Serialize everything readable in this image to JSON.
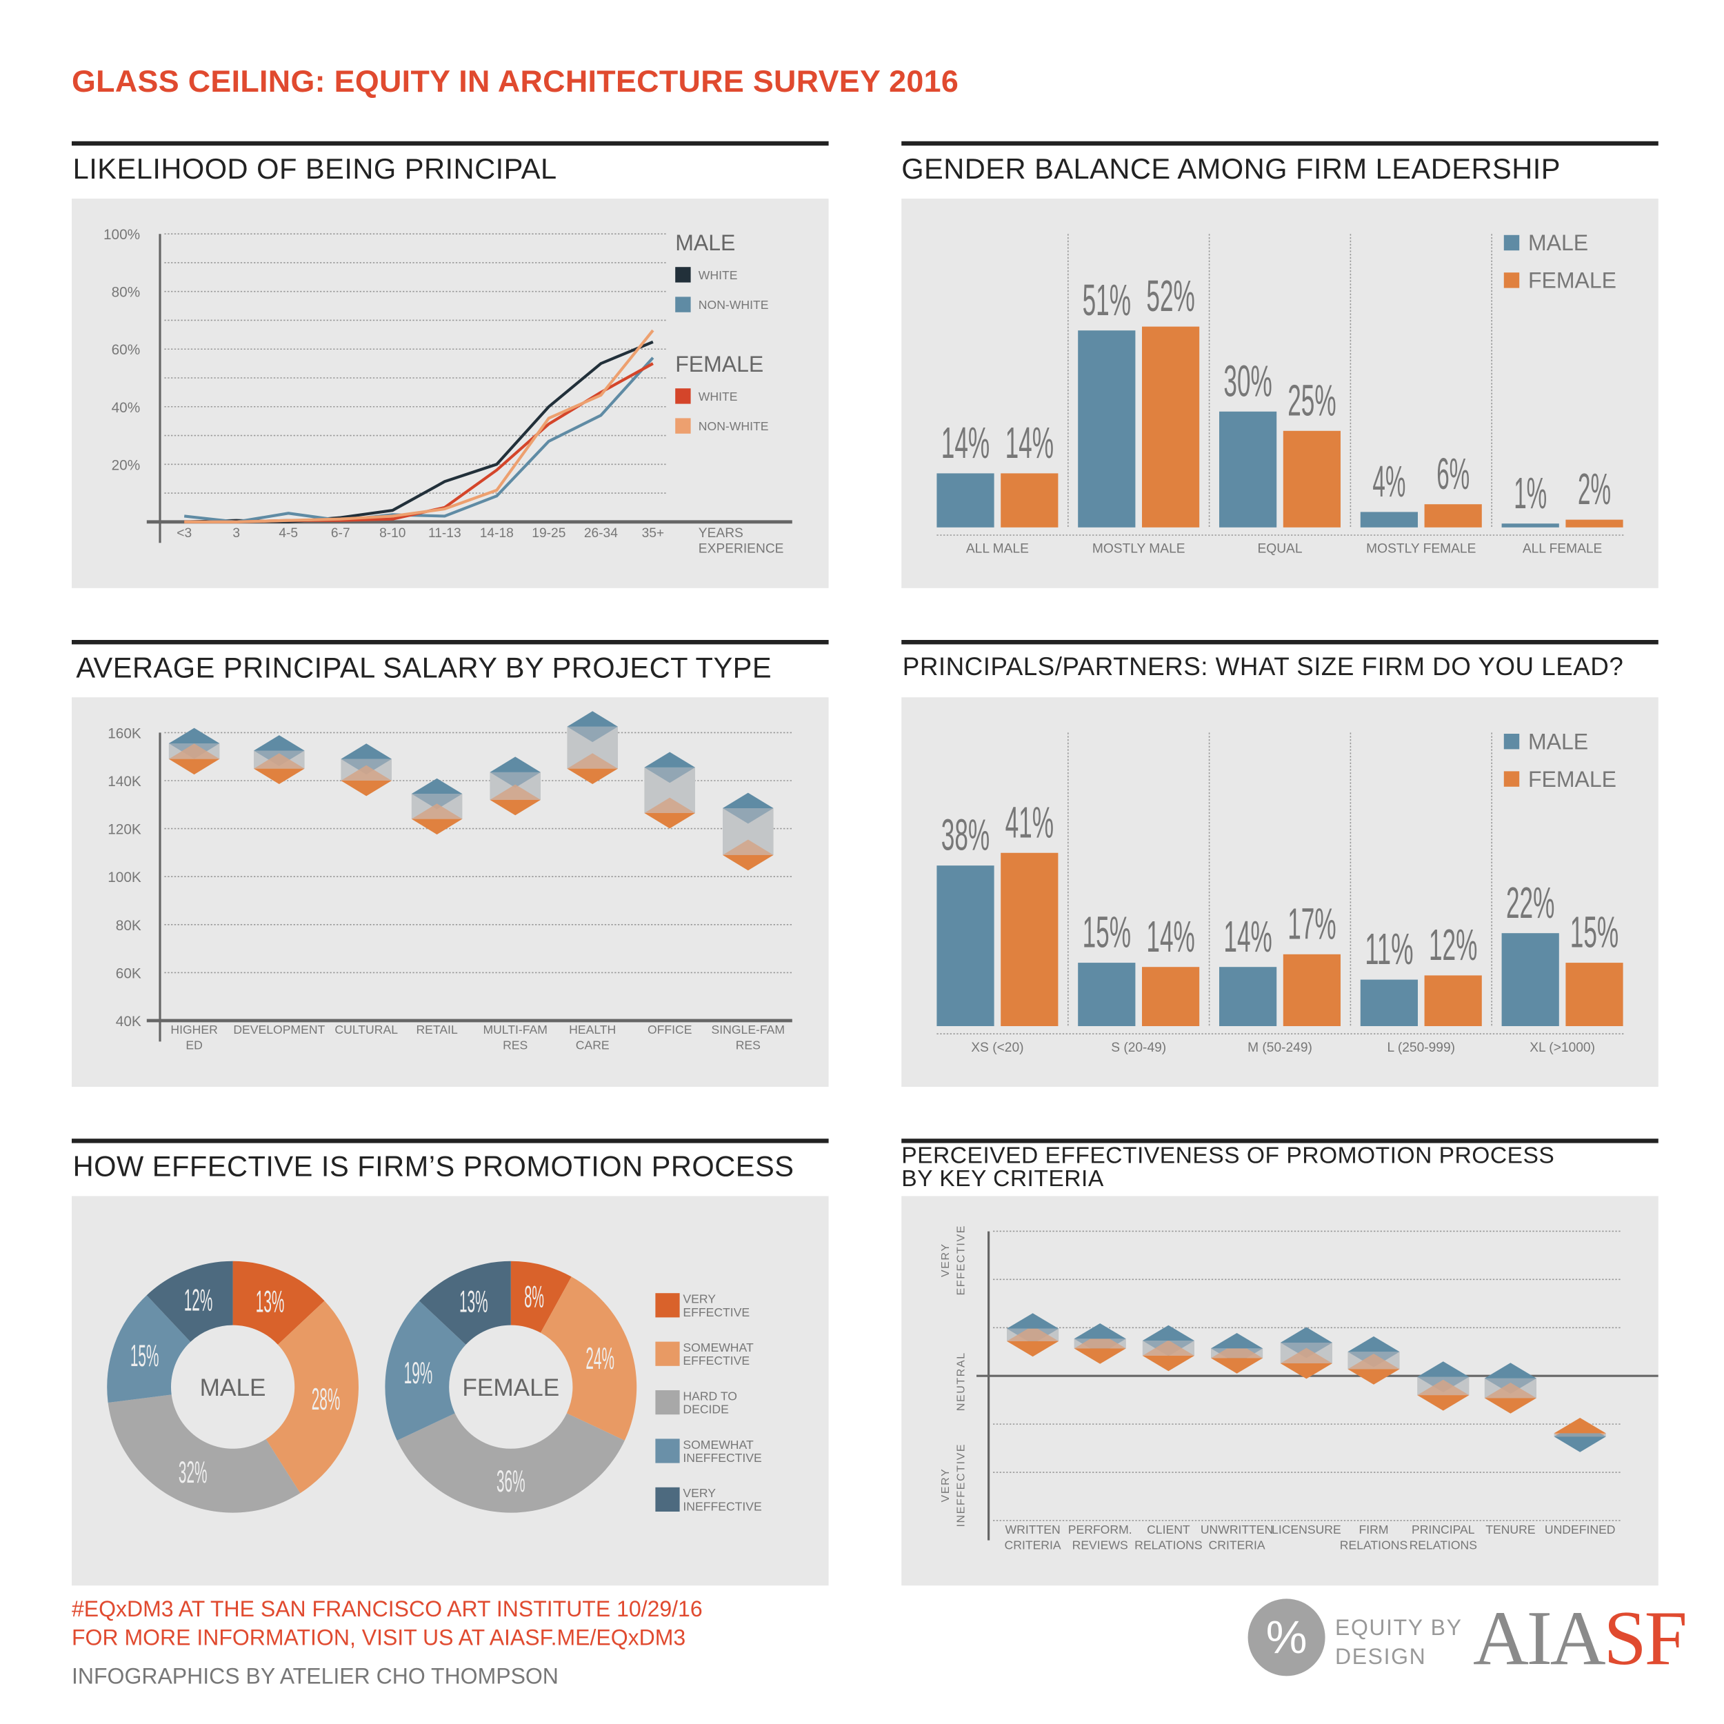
{
  "title": "GLASS CEILING: EQUITY IN ARCHITECTURE SURVEY 2016",
  "panels": {
    "p1": "LIKELIHOOD OF BEING PRINCIPAL",
    "p2": "GENDER BALANCE AMONG FIRM LEADERSHIP",
    "p3": "AVERAGE PRINCIPAL SALARY BY PROJECT TYPE",
    "p4": "PRINCIPALS/PARTNERS: WHAT SIZE FIRM DO YOU LEAD?",
    "p5": "HOW EFFECTIVE IS FIRM’S PROMOTION PROCESS",
    "p6a": "PERCEIVED EFFECTIVENESS OF PROMOTION PROCESS",
    "p6b": "BY KEY CRITERIA"
  },
  "footer": {
    "line1": "#EQxDM3 AT THE SAN FRANCISCO ART INSTITUTE 10/29/16",
    "line2": "FOR MORE INFORMATION, VISIT US AT AIASF.ME/EQxDM3",
    "line3": "INFOGRAPHICS BY ATELIER CHO THOMPSON",
    "logo_equity": "EQUITY BY",
    "logo_design": "DESIGN",
    "logo_symbol": "%",
    "logo_aia": "AIA",
    "logo_sf": "SF"
  },
  "colors": {
    "male": "#5f8ba4",
    "female": "#e0813f",
    "title": "#e04a2f"
  },
  "chart_data": [
    {
      "type": "line",
      "categories": [
        "<3",
        "3",
        "4-5",
        "6-7",
        "8-10",
        "11-13",
        "14-18",
        "19-25",
        "26-34",
        "35+"
      ],
      "xlabel": [
        "YEARS",
        "EXPERIENCE"
      ],
      "yticks": [
        "20%",
        "40%",
        "60%",
        "80%",
        "100%"
      ],
      "ylim": [
        0,
        100
      ],
      "grid": true,
      "legend": "right",
      "legend_groups": [
        {
          "name": "MALE",
          "items": [
            "WHITE",
            "NON-WHITE"
          ]
        },
        {
          "name": "FEMALE",
          "items": [
            "WHITE",
            "NON-WHITE"
          ]
        }
      ],
      "series": [
        {
          "name": "MALE WHITE",
          "color": "#22303a",
          "values": [
            0,
            0.5,
            0,
            1.5,
            4,
            14,
            20,
            40,
            55,
            62.5
          ]
        },
        {
          "name": "MALE NON-WHITE",
          "color": "#5f8ba4",
          "values": [
            2,
            0,
            3,
            0.5,
            2.5,
            2,
            9,
            28,
            37,
            57
          ]
        },
        {
          "name": "FEMALE WHITE",
          "color": "#d4452a",
          "values": [
            0,
            0,
            0.5,
            0.5,
            1,
            5,
            18,
            34,
            45,
            55
          ]
        },
        {
          "name": "FEMALE NON-WHITE",
          "color": "#eda06f",
          "values": [
            0,
            0,
            0.5,
            1,
            2,
            4.5,
            11,
            36,
            44,
            66.5
          ]
        }
      ]
    },
    {
      "type": "bar",
      "categories": [
        "ALL MALE",
        "MOSTLY MALE",
        "EQUAL",
        "MOSTLY FEMALE",
        "ALL FEMALE"
      ],
      "legend": "top-right",
      "series": [
        {
          "name": "MALE",
          "values": [
            14,
            51,
            30,
            4,
            1
          ]
        },
        {
          "name": "FEMALE",
          "values": [
            14,
            52,
            25,
            6,
            2
          ]
        }
      ],
      "labels": [
        [
          "14%",
          "14%"
        ],
        [
          "51%",
          "52%"
        ],
        [
          "30%",
          "25%"
        ],
        [
          "4%",
          "6%"
        ],
        [
          "1%",
          "2%"
        ]
      ]
    },
    {
      "type": "range",
      "categories": [
        [
          "HIGHER",
          "ED"
        ],
        [
          "DEVELOPMENT"
        ],
        [
          "CULTURAL"
        ],
        [
          "RETAIL"
        ],
        [
          "MULTI-FAM",
          "RES"
        ],
        [
          "HEALTH",
          "CARE"
        ],
        [
          "OFFICE"
        ],
        [
          "SINGLE-FAM",
          "RES"
        ]
      ],
      "yticks": [
        "40K",
        "60K",
        "80K",
        "100K",
        "120K",
        "140K",
        "160K"
      ],
      "ylim": [
        40,
        160
      ],
      "grid": true,
      "series": [
        {
          "name": "MALE",
          "values": [
            155.5,
            152.5,
            149,
            134.5,
            143.5,
            162.5,
            145.5,
            128.5
          ]
        },
        {
          "name": "FEMALE",
          "values": [
            149,
            145,
            140,
            124,
            132,
            145,
            126.5,
            109
          ]
        }
      ]
    },
    {
      "type": "bar",
      "categories": [
        "XS (<20)",
        "S (20-49)",
        "M (50-249)",
        "L (250-999)",
        "XL (>1000)"
      ],
      "legend": "top-right",
      "series": [
        {
          "name": "MALE",
          "values": [
            38,
            15,
            14,
            11,
            22
          ]
        },
        {
          "name": "FEMALE",
          "values": [
            41,
            14,
            17,
            12,
            15
          ]
        }
      ],
      "labels": [
        [
          "38%",
          "41%"
        ],
        [
          "15%",
          "14%"
        ],
        [
          "14%",
          "17%"
        ],
        [
          "11%",
          "12%"
        ],
        [
          "22%",
          "15%"
        ]
      ]
    },
    {
      "type": "pie",
      "donut": true,
      "legend": "right",
      "categories": [
        [
          "VERY",
          "EFFECTIVE"
        ],
        [
          "SOMEWHAT",
          "EFFECTIVE"
        ],
        [
          "HARD TO",
          "DECIDE"
        ],
        [
          "SOMEWHAT",
          "INEFFECTIVE"
        ],
        [
          "VERY",
          "INEFFECTIVE"
        ]
      ],
      "colors": [
        "#d9622b",
        "#e89a64",
        "#a8a8a8",
        "#6a90a8",
        "#4d6a7f"
      ],
      "series": [
        {
          "name": "MALE",
          "values": [
            13,
            28,
            32,
            15,
            12
          ],
          "labels": [
            "13%",
            "28%",
            "32%",
            "15%",
            "12%"
          ]
        },
        {
          "name": "FEMALE",
          "values": [
            8,
            24,
            36,
            19,
            13
          ],
          "labels": [
            "8%",
            "24%",
            "36%",
            "19%",
            "13%"
          ]
        }
      ]
    },
    {
      "type": "range",
      "categories": [
        [
          "WRITTEN",
          "CRITERIA"
        ],
        [
          "PERFORM.",
          "REVIEWS"
        ],
        [
          "CLIENT",
          "RELATIONS"
        ],
        [
          "UNWRITTEN",
          "CRITERIA"
        ],
        [
          "LICENSURE"
        ],
        [
          "FIRM",
          "RELATIONS"
        ],
        [
          "PRINCIPAL",
          "RELATIONS"
        ],
        [
          "TENURE"
        ],
        [
          "UNDEFINED"
        ]
      ],
      "yaxis_labels": {
        "top": [
          "VERY",
          "EFFECTIVE"
        ],
        "middle": [
          "NEUTRAL"
        ],
        "bottom": [
          "VERY",
          "INEFFECTIVE"
        ]
      },
      "ylim": [
        -3,
        3
      ],
      "grid": true,
      "series": [
        {
          "name": "MALE",
          "values": [
            0.98,
            0.77,
            0.73,
            0.57,
            0.69,
            0.5,
            -0.02,
            -0.05,
            -1.26
          ]
        },
        {
          "name": "FEMALE",
          "values": [
            0.72,
            0.57,
            0.42,
            0.37,
            0.26,
            0.14,
            -0.4,
            -0.46,
            -1.19
          ]
        }
      ]
    }
  ]
}
